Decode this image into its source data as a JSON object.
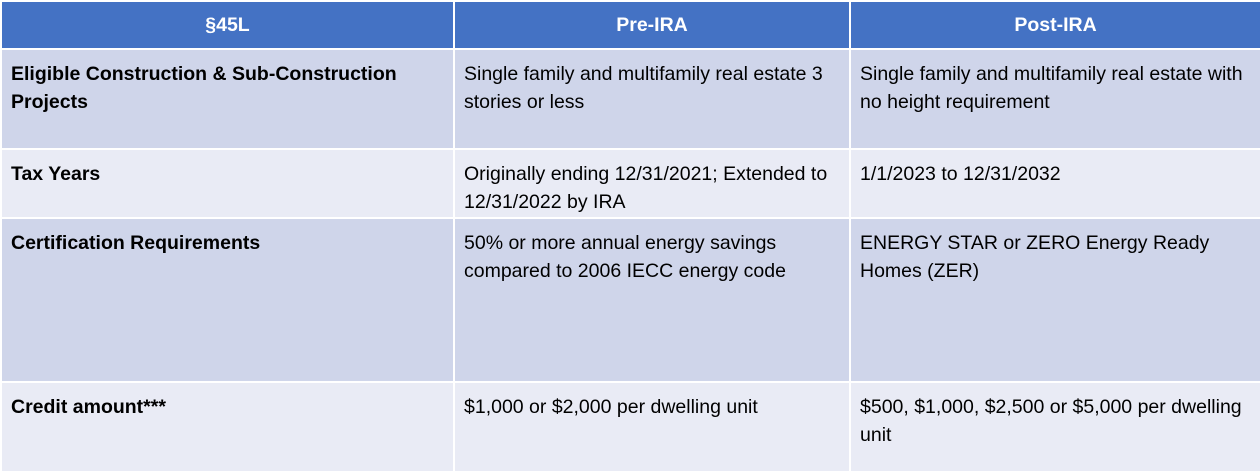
{
  "table": {
    "header": [
      "§45L",
      "Pre-IRA",
      "Post-IRA"
    ],
    "rows": [
      [
        "Eligible Construction & Sub-Construction Projects",
        "Single family and multifamily real estate 3 stories or less",
        "Single family and multifamily real estate with no height requirement"
      ],
      [
        "Tax Years",
        "Originally ending 12/31/2021; Extended to 12/31/2022 by IRA",
        "1/1/2023 to 12/31/2032"
      ],
      [
        "Certification Requirements",
        "50% or more annual energy savings compared to 2006 IECC energy code",
        "ENERGY STAR or ZERO Energy Ready Homes (ZER)"
      ],
      [
        "Credit amount***",
        "$1,000 or $2,000 per dwelling unit",
        "$500, $1,000, $2,500 or $5,000 per dwelling unit"
      ]
    ]
  }
}
